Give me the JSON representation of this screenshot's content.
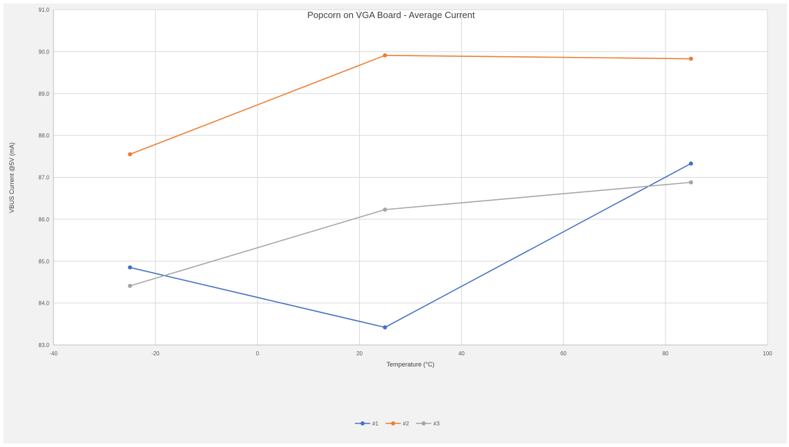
{
  "chart_data": {
    "type": "line",
    "title": "Popcorn on VGA Board - Average Current",
    "xlabel": "Temperature (°C)",
    "ylabel": "VBUS Current @5V (mA)",
    "xlim": [
      -40,
      100
    ],
    "ylim": [
      83.0,
      91.0
    ],
    "x_ticks": [
      -40,
      -20,
      0,
      20,
      40,
      60,
      80,
      100
    ],
    "y_ticks": [
      83.0,
      84.0,
      85.0,
      86.0,
      87.0,
      88.0,
      89.0,
      90.0,
      91.0
    ],
    "x_tick_labels": [
      "-40",
      "-20",
      "0",
      "20",
      "40",
      "60",
      "80",
      "100"
    ],
    "y_tick_labels": [
      "83.0",
      "84.0",
      "85.0",
      "86.0",
      "87.0",
      "88.0",
      "89.0",
      "90.0",
      "91.0"
    ],
    "grid": true,
    "legend_position": "bottom",
    "x": [
      -25,
      25,
      85
    ],
    "series": [
      {
        "name": "#1",
        "color": "#4472c4",
        "values": [
          84.85,
          83.42,
          87.33
        ]
      },
      {
        "name": "#2",
        "color": "#ed7d31",
        "values": [
          87.55,
          89.91,
          89.83
        ]
      },
      {
        "name": "#3",
        "color": "#a5a5a5",
        "values": [
          84.41,
          86.23,
          86.88
        ]
      }
    ]
  }
}
